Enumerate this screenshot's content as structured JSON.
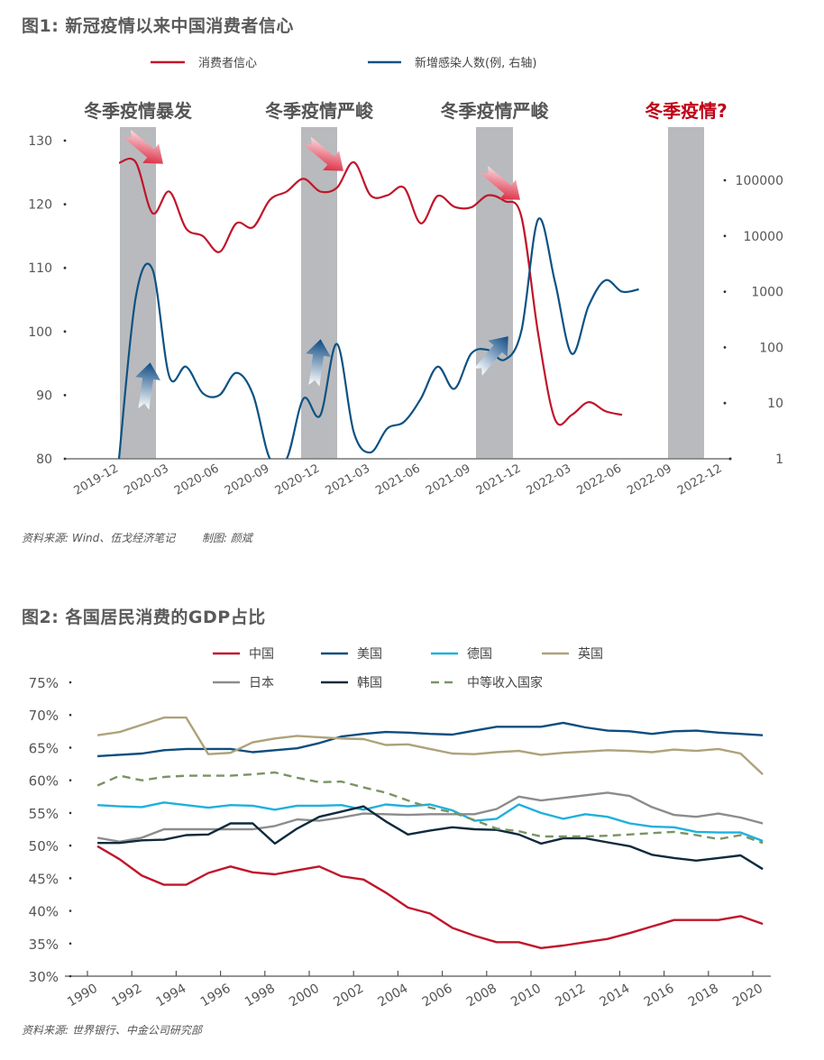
{
  "chart_data": [
    {
      "type": "line",
      "title": "图1: 新冠疫情以来中国消费者信心",
      "source": "资料来源: Wind、伍戈经济笔记",
      "credit": "制图: 颜斌",
      "legend": [
        "消费者信心",
        "新增感染人数(例, 右轴)"
      ],
      "legend_position": "top",
      "x_tick_labels": [
        "2019-12",
        "2020-03",
        "2020-06",
        "2020-09",
        "2020-12",
        "2021-03",
        "2021-06",
        "2021-09",
        "2021-12",
        "2022-03",
        "2022-06",
        "2022-09",
        "2022-12"
      ],
      "y_left": {
        "ticks": [
          "130",
          "120",
          "110",
          "100",
          "90",
          "80"
        ],
        "ylim": [
          80,
          130
        ]
      },
      "y_right": {
        "ticks": [
          "100000",
          "10000",
          "1000",
          "100",
          "10",
          "1"
        ],
        "scale": "log",
        "ylim": [
          1,
          100000
        ]
      },
      "annotations": [
        {
          "text": "冬季疫情暴发",
          "period": [
            "2019-12",
            "2020-02"
          ],
          "highlight": false
        },
        {
          "text": "冬季疫情严峻",
          "period": [
            "2020-11",
            "2021-01"
          ],
          "highlight": false
        },
        {
          "text": "冬季疫情严峻",
          "period": [
            "2021-09",
            "2021-11"
          ],
          "highlight": false
        },
        {
          "text": "冬季疫情?",
          "period": [
            "2022-08",
            "2022-10"
          ],
          "highlight": true
        }
      ],
      "series": [
        {
          "name": "消费者信心",
          "axis": "left",
          "color": "#c0152a",
          "month_index": [
            0,
            1,
            2,
            3,
            4,
            5,
            6,
            7,
            8,
            9,
            10,
            11,
            12,
            13,
            14,
            15,
            16,
            17,
            18,
            19,
            20,
            21,
            22,
            23,
            24,
            25,
            26,
            27,
            28,
            29,
            30,
            31,
            32
          ],
          "values": [
            126.5,
            126.6,
            118.6,
            122.0,
            116.2,
            115.0,
            112.5,
            117.0,
            116.4,
            120.7,
            122.0,
            124.0,
            122.0,
            122.6,
            126.6,
            121.4,
            121.4,
            122.6,
            117.0,
            121.3,
            119.6,
            119.5,
            121.4,
            120.5,
            118.0,
            99.6,
            86.2,
            86.9,
            88.9,
            87.5,
            86.9,
            null,
            null
          ]
        },
        {
          "name": "新增感染人数(例, 右轴)",
          "axis": "right",
          "color": "#0d5283",
          "month_index": [
            0,
            1,
            2,
            3,
            4,
            5,
            6,
            7,
            8,
            9,
            10,
            11,
            12,
            13,
            14,
            15,
            16,
            17,
            18,
            19,
            20,
            21,
            22,
            23,
            24,
            25,
            26,
            27,
            28,
            29,
            30,
            31,
            32,
            33,
            34
          ],
          "values": [
            1,
            800,
            2500,
            30,
            45,
            15,
            14,
            35,
            14,
            1,
            1,
            12,
            6,
            115,
            3,
            1.3,
            3.5,
            4.6,
            12,
            45,
            18,
            77,
            90,
            60,
            200,
            20000,
            1500,
            77,
            550,
            1600,
            1000,
            1100,
            null,
            null,
            null
          ]
        }
      ]
    },
    {
      "type": "line",
      "title": "图2: 各国居民消费的GDP占比",
      "source": "资料来源: 世界银行、中金公司研究部",
      "legend_position": "top",
      "x_tick_labels": [
        "1990",
        "1992",
        "1994",
        "1996",
        "1998",
        "2000",
        "2002",
        "2004",
        "2006",
        "2008",
        "2010",
        "2012",
        "2014",
        "2016",
        "2018",
        "2020"
      ],
      "y_tick_labels": [
        "75%",
        "70%",
        "65%",
        "60%",
        "55%",
        "50%",
        "45%",
        "40%",
        "35%",
        "30%"
      ],
      "ylim": [
        30,
        75
      ],
      "x": [
        1990,
        1991,
        1992,
        1993,
        1994,
        1995,
        1996,
        1997,
        1998,
        1999,
        2000,
        2001,
        2002,
        2003,
        2004,
        2005,
        2006,
        2007,
        2008,
        2009,
        2010,
        2011,
        2012,
        2013,
        2014,
        2015,
        2016,
        2017,
        2018,
        2019,
        2020
      ],
      "series": [
        {
          "name": "中国",
          "color": "#c0152a",
          "dash": false,
          "values": [
            49.9,
            47.9,
            45.4,
            44.0,
            44.0,
            45.8,
            46.8,
            45.9,
            45.6,
            46.2,
            46.8,
            45.3,
            44.8,
            42.8,
            40.5,
            39.6,
            37.4,
            36.2,
            35.2,
            35.2,
            34.3,
            34.7,
            35.2,
            35.7,
            36.6,
            37.6,
            38.6,
            38.6,
            38.6,
            39.2,
            38.0
          ]
        },
        {
          "name": "美国",
          "color": "#0e4d7e",
          "dash": false,
          "values": [
            63.7,
            63.9,
            64.1,
            64.6,
            64.8,
            64.8,
            64.8,
            64.3,
            64.6,
            64.9,
            65.7,
            66.7,
            67.1,
            67.4,
            67.3,
            67.1,
            67.0,
            67.6,
            68.2,
            68.2,
            68.2,
            68.8,
            68.1,
            67.6,
            67.5,
            67.1,
            67.5,
            67.6,
            67.3,
            67.1,
            66.9
          ]
        },
        {
          "name": "德国",
          "color": "#1fb0dd",
          "dash": false,
          "values": [
            56.2,
            56.0,
            55.9,
            56.6,
            56.2,
            55.8,
            56.2,
            56.1,
            55.5,
            56.1,
            56.1,
            56.2,
            55.5,
            56.3,
            56.0,
            56.3,
            55.4,
            53.8,
            54.1,
            56.3,
            55.0,
            54.1,
            54.8,
            54.4,
            53.4,
            52.9,
            52.8,
            52.1,
            52.0,
            52.0,
            50.7
          ]
        },
        {
          "name": "英国",
          "color": "#ada27a",
          "dash": false,
          "values": [
            66.9,
            67.4,
            68.5,
            69.6,
            69.6,
            64.0,
            64.2,
            65.8,
            66.4,
            66.8,
            66.6,
            66.4,
            66.3,
            65.4,
            65.5,
            64.8,
            64.1,
            64.0,
            64.3,
            64.5,
            63.9,
            64.2,
            64.4,
            64.6,
            64.5,
            64.3,
            64.7,
            64.5,
            64.8,
            64.1,
            60.9
          ]
        },
        {
          "name": "日本",
          "color": "#8c8c8c",
          "dash": false,
          "values": [
            51.2,
            50.6,
            51.2,
            52.5,
            52.5,
            52.5,
            52.5,
            52.5,
            53.0,
            54.0,
            53.8,
            54.3,
            54.9,
            54.8,
            54.7,
            54.8,
            54.8,
            54.8,
            55.6,
            57.5,
            56.9,
            57.3,
            57.7,
            58.1,
            57.6,
            55.9,
            54.7,
            54.4,
            54.9,
            54.3,
            53.4
          ]
        },
        {
          "name": "韩国",
          "color": "#0f2a3d",
          "dash": false,
          "values": [
            50.4,
            50.4,
            50.8,
            50.9,
            51.6,
            51.7,
            53.4,
            53.4,
            50.3,
            52.6,
            54.4,
            55.2,
            56.0,
            53.7,
            51.7,
            52.3,
            52.8,
            52.5,
            52.4,
            51.7,
            50.3,
            51.1,
            51.1,
            50.5,
            49.9,
            48.6,
            48.1,
            47.7,
            48.1,
            48.5,
            46.4
          ]
        },
        {
          "name": "中等收入国家",
          "color": "#7a9465",
          "dash": true,
          "values": [
            59.2,
            60.7,
            60.0,
            60.5,
            60.7,
            60.7,
            60.7,
            60.9,
            61.2,
            60.4,
            59.7,
            59.8,
            58.9,
            58.1,
            56.9,
            55.8,
            55.1,
            53.9,
            52.6,
            52.2,
            51.4,
            51.4,
            51.4,
            51.5,
            51.7,
            51.9,
            52.1,
            51.6,
            51.0,
            51.6,
            50.4
          ]
        }
      ]
    }
  ]
}
